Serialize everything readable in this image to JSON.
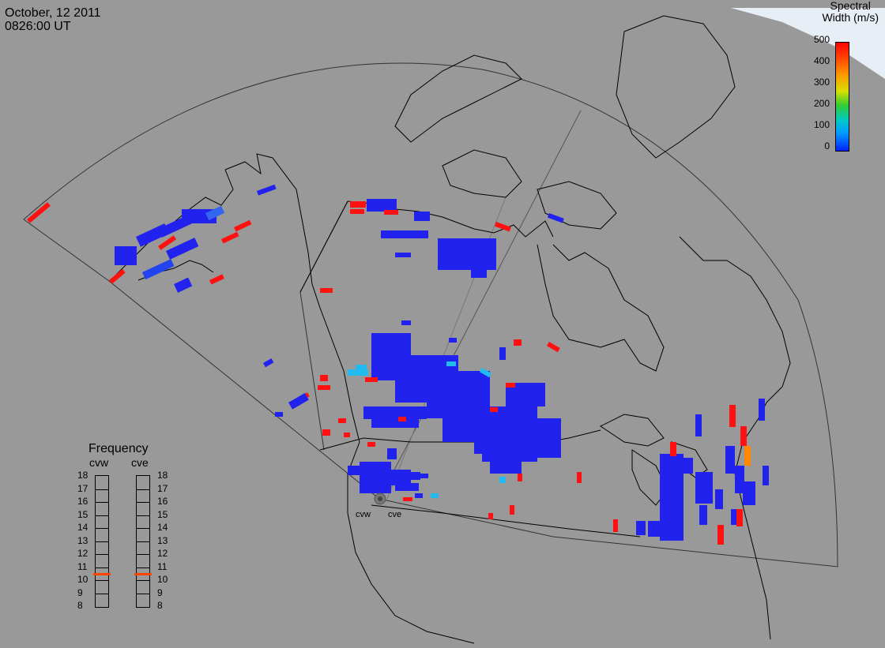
{
  "header": {
    "date": "October, 12 2011",
    "time": "0826:00 UT"
  },
  "colorbar": {
    "title_line1": "Spectral",
    "title_line2": "Width (m/s)",
    "ticks": [
      "500",
      "400",
      "300",
      "200",
      "100",
      "0"
    ],
    "range": [
      0,
      500
    ],
    "colors": {
      "high": "#ff0000",
      "mid": "#33cc33",
      "low": "#0022ff"
    }
  },
  "frequency": {
    "title": "Frequency",
    "columns": [
      {
        "label": "cvw",
        "selected": 11
      },
      {
        "label": "cve",
        "selected": 11
      }
    ],
    "levels": [
      "18",
      "17",
      "16",
      "15",
      "14",
      "13",
      "12",
      "11",
      "10",
      "9",
      "8"
    ]
  },
  "radars": [
    {
      "label": "cvw"
    },
    {
      "label": "cve"
    }
  ],
  "colors": {
    "background": "#999999",
    "echo_blue": "#2222ee",
    "echo_red": "#ff1111",
    "echo_cyan": "#22bbee",
    "echo_orange": "#ff8800"
  }
}
